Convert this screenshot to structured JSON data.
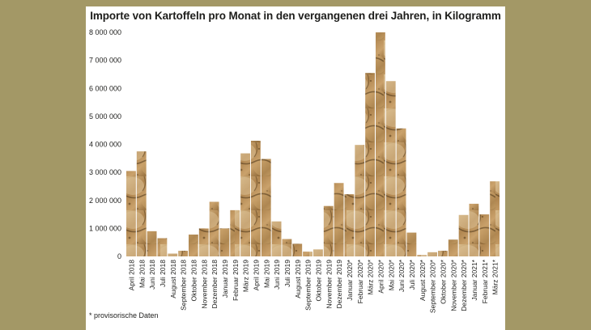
{
  "chart_data": {
    "type": "bar",
    "title": "Importe von Kartoffeln pro Monat in den vergangenen drei Jahren, in Kilogramm",
    "xlabel": "",
    "ylabel": "",
    "ylim": [
      0,
      8000000
    ],
    "yticks": [
      0,
      1000000,
      2000000,
      3000000,
      4000000,
      5000000,
      6000000,
      7000000,
      8000000
    ],
    "ytick_labels": [
      "0",
      "1 000 000",
      "2 000 000",
      "3 000 000",
      "4 000 000",
      "5 000 000",
      "6 000 000",
      "7 000 000",
      "8 000 000"
    ],
    "grid": false,
    "bar_fill": "potato-photo-texture",
    "categories": [
      "April 2018",
      "Mai 2018",
      "Juni 2018",
      "Juli 2018",
      "August 2018",
      "September 2018",
      "Oktober 2018",
      "November 2018",
      "Dezember 2018",
      "Januar 2019",
      "Februar 2019",
      "März 2019",
      "April 2019",
      "Mai 2019",
      "Juni 2019",
      "Juli 2019",
      "August 2019",
      "September 2019",
      "Oktober 2019",
      "November 2019",
      "Dezember 2019",
      "Januar 2020*",
      "Februar 2020*",
      "März 2020*",
      "April 2020*",
      "Mai 2020*",
      "Juni 2020*",
      "Juli 2020*",
      "August 2020*",
      "September 2020*",
      "Oktober 2020*",
      "November 2020*",
      "Dezember 2020*",
      "Januar 2021*",
      "Februar 2021*",
      "März 2021*"
    ],
    "values": [
      3050000,
      3750000,
      900000,
      650000,
      100000,
      200000,
      780000,
      1000000,
      1950000,
      1000000,
      1650000,
      3680000,
      4130000,
      3480000,
      1250000,
      620000,
      450000,
      170000,
      250000,
      1800000,
      2620000,
      2220000,
      3980000,
      6550000,
      8000000,
      6260000,
      4570000,
      850000,
      50000,
      150000,
      200000,
      600000,
      1480000,
      1880000,
      1500000,
      2680000
    ]
  },
  "footnote": "* provisorische Daten",
  "colors": {
    "background": "#a39866",
    "panel": "#ffffff",
    "text": "#1d1d1b",
    "bar_dark": "#5e4422",
    "bar_mid": "#a27a45",
    "bar_light": "#d7b98a"
  }
}
